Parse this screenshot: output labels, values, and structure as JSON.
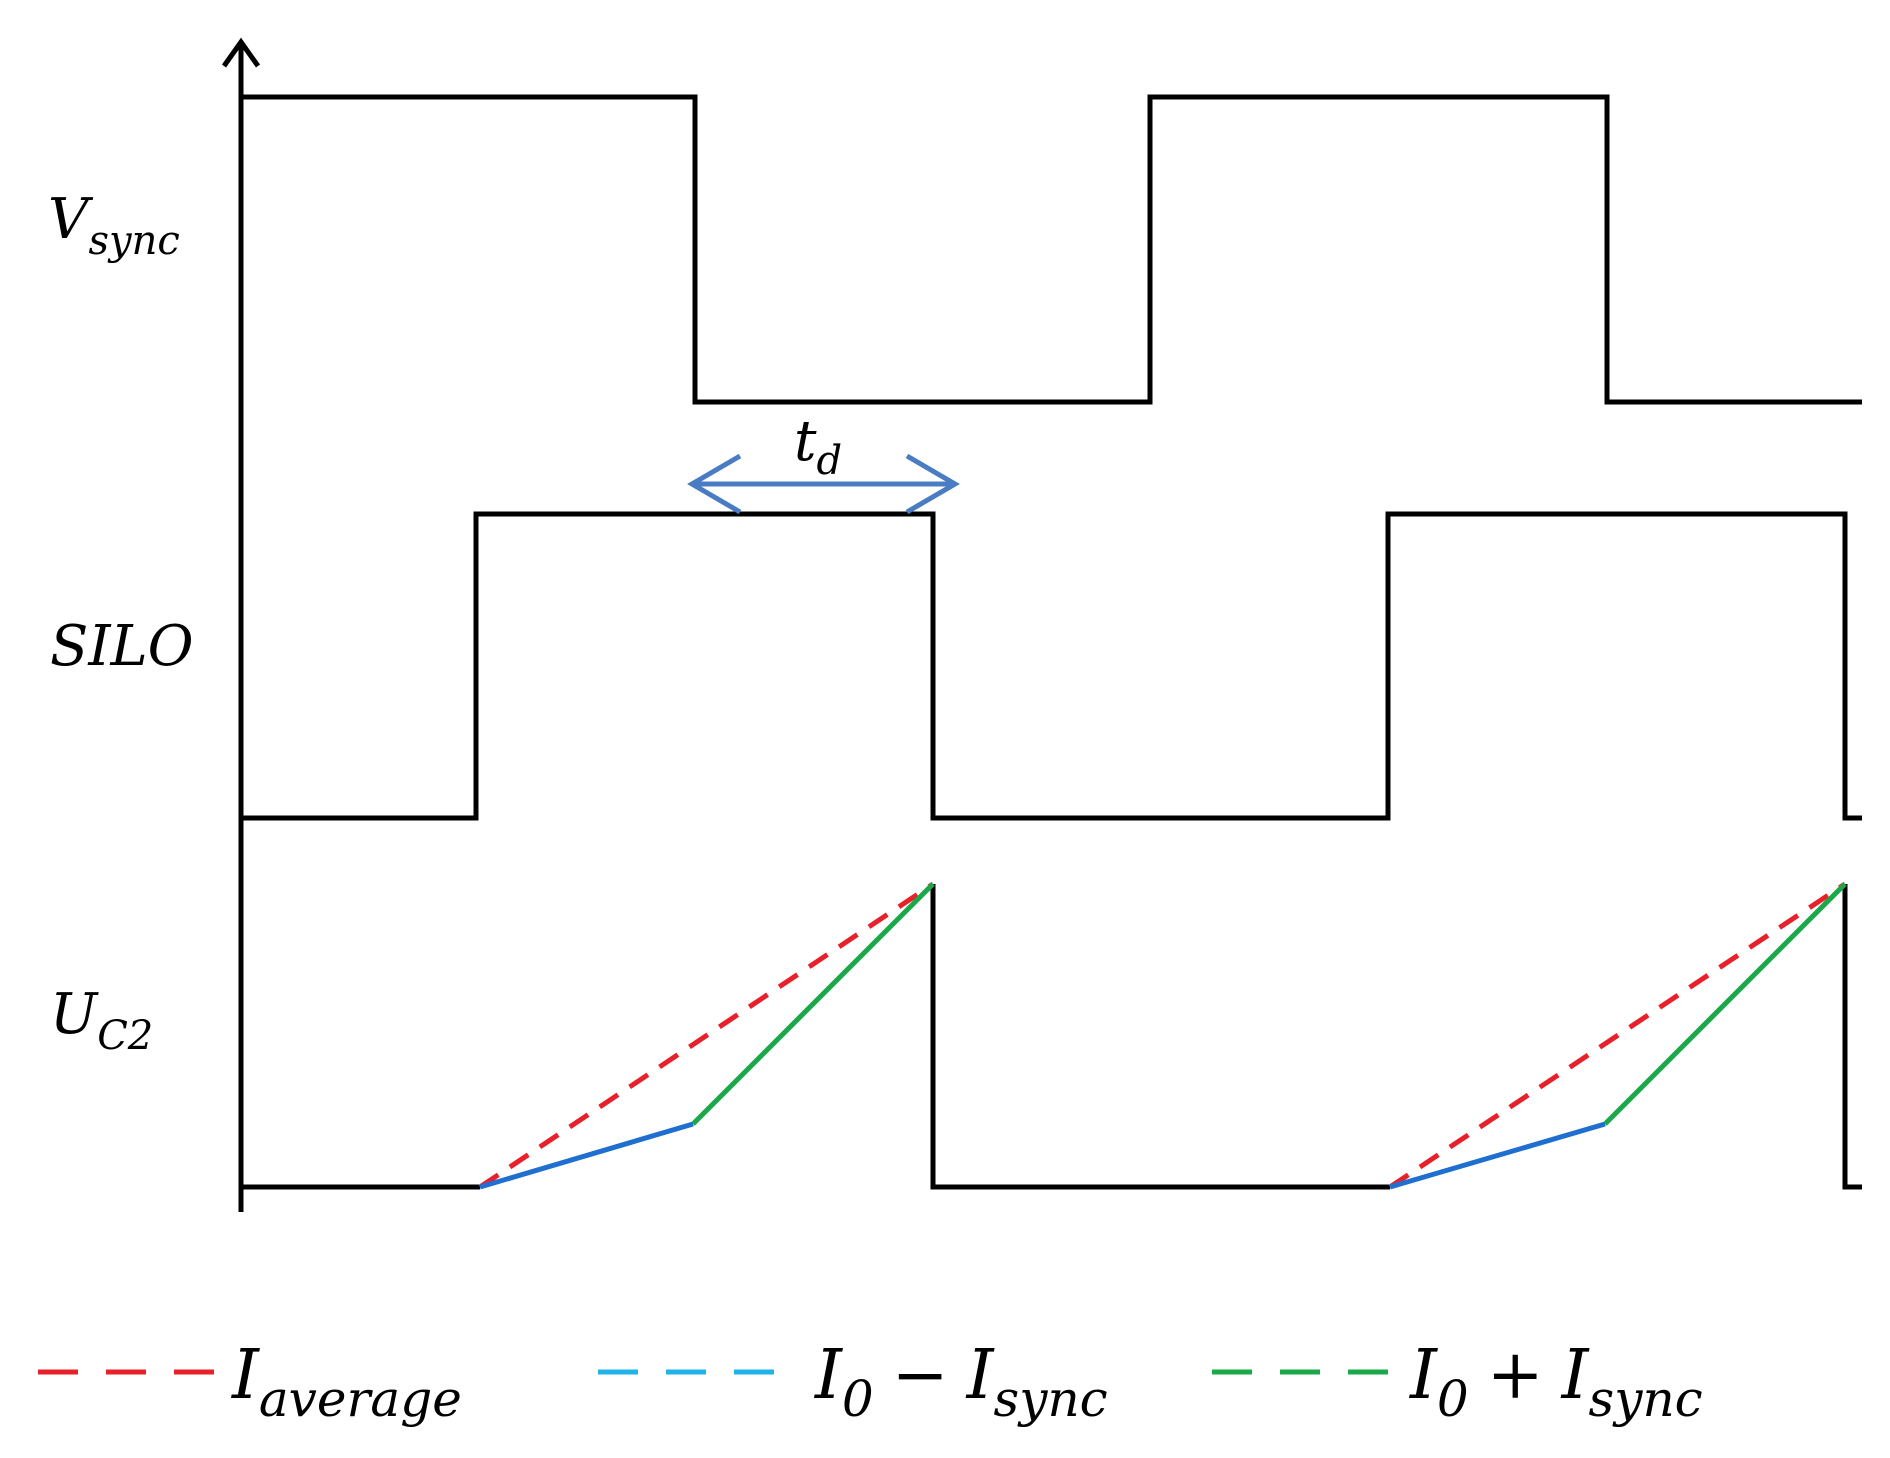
{
  "signals": [
    {
      "name": "V",
      "sub": "sync"
    },
    {
      "name": "SILO",
      "sub": ""
    },
    {
      "name": "U",
      "sub": "C2"
    }
  ],
  "delay_label": {
    "name": "t",
    "sub": "d"
  },
  "legend": [
    {
      "name": "I",
      "sub": "average",
      "color": "#e8202a",
      "style": "dashed"
    },
    {
      "name": "I",
      "sub": "0",
      "op": "−",
      "name2": "I",
      "sub2": "sync",
      "color": "#1fb3e8",
      "style": "dashed"
    },
    {
      "name": "I",
      "sub": "0",
      "op": "+",
      "name2": "I",
      "sub2": "sync",
      "color": "#1aa84a",
      "style": "dashed"
    }
  ],
  "colors": {
    "waveform": "#000000",
    "delay_arrow": "#4a7cc4",
    "slope_low": "#1f6fd0",
    "slope_high": "#1aa84a",
    "average": "#e8202a"
  }
}
